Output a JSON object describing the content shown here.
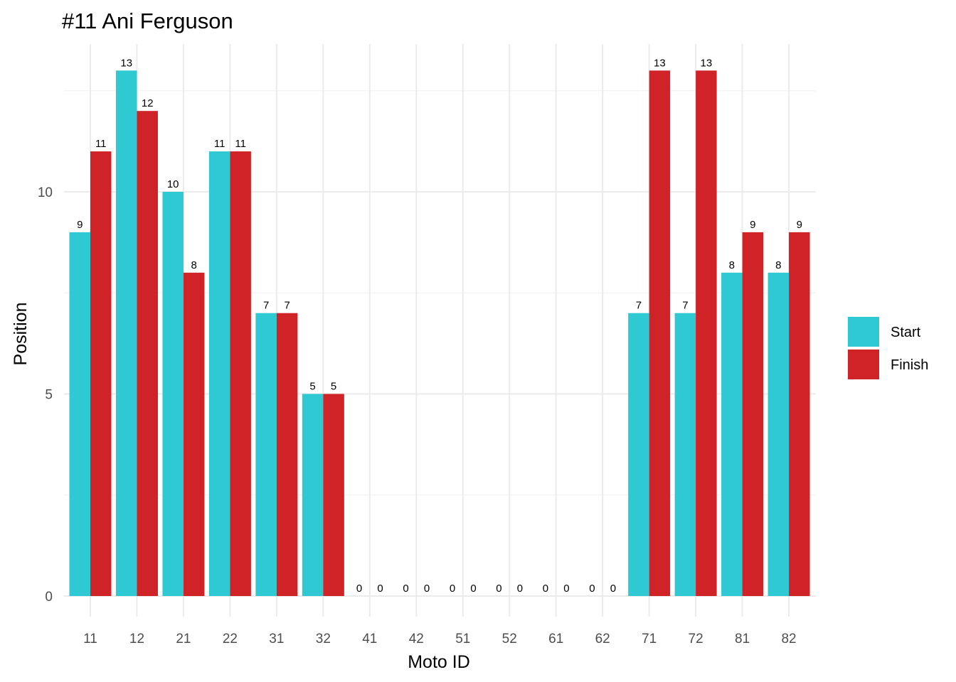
{
  "chart_data": {
    "type": "bar",
    "title": "#11 Ani Ferguson",
    "xlabel": "Moto ID",
    "ylabel": "Position",
    "categories": [
      "11",
      "12",
      "21",
      "22",
      "31",
      "32",
      "41",
      "42",
      "51",
      "52",
      "61",
      "62",
      "71",
      "72",
      "81",
      "82"
    ],
    "series": [
      {
        "name": "Start",
        "color": "#2ec9d2",
        "values": [
          9,
          13,
          10,
          11,
          7,
          5,
          0,
          0,
          0,
          0,
          0,
          0,
          7,
          7,
          8,
          8
        ]
      },
      {
        "name": "Finish",
        "color": "#d02327",
        "values": [
          11,
          12,
          8,
          11,
          7,
          5,
          0,
          0,
          0,
          0,
          0,
          0,
          13,
          13,
          9,
          9
        ]
      }
    ],
    "ylim": [
      0,
      13
    ],
    "yticks": [
      0,
      5,
      10
    ],
    "grid": true,
    "data_labels": true,
    "legend_position": "right"
  }
}
